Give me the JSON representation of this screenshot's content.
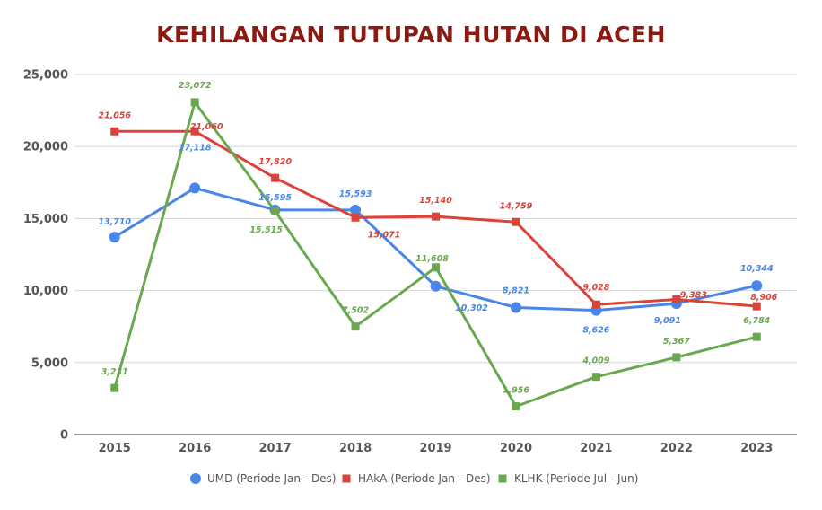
{
  "chart_data": {
    "type": "line",
    "title": "KEHILANGAN TUTUPAN HUTAN DI ACEH",
    "categories": [
      "2015",
      "2016",
      "2017",
      "2018",
      "2019",
      "2020",
      "2021",
      "2022",
      "2023"
    ],
    "ylim": [
      0,
      25000
    ],
    "yticks": [
      0,
      5000,
      10000,
      15000,
      20000,
      25000
    ],
    "ytick_labels": [
      "0",
      "5,000",
      "10,000",
      "15,000",
      "20,000",
      "25,000"
    ],
    "grid": true,
    "legend_position": "bottom",
    "series": [
      {
        "name": "UMD (Periode Jan - Des)",
        "color": "#4a86e8",
        "marker": "circle",
        "values": [
          13710,
          17118,
          15595,
          15593,
          10302,
          8821,
          8626,
          9091,
          10344
        ],
        "labels": [
          "13,710",
          "17,118",
          "15,595",
          "15,593",
          "10,302",
          "8,821",
          "8,626",
          "9,091",
          "10,344"
        ]
      },
      {
        "name": "HAkA (Periode Jan - Des)",
        "color": "#d9433a",
        "marker": "square",
        "values": [
          21056,
          21060,
          17820,
          15071,
          15140,
          14759,
          9028,
          9383,
          8906
        ],
        "labels": [
          "21,056",
          "21,060",
          "17,820",
          "15,071",
          "15,140",
          "14,759",
          "9,028",
          "9,383",
          "8,906"
        ]
      },
      {
        "name": "KLHK (Periode Jul - Jun)",
        "color": "#6aa84f",
        "marker": "square",
        "values": [
          3231,
          23072,
          15515,
          7502,
          11608,
          1956,
          4009,
          5367,
          6784
        ],
        "labels": [
          "3,231",
          "23,072",
          "15,515",
          "7,502",
          "11,608",
          "1,956",
          "4,009",
          "5,367",
          "6,784"
        ]
      }
    ]
  }
}
